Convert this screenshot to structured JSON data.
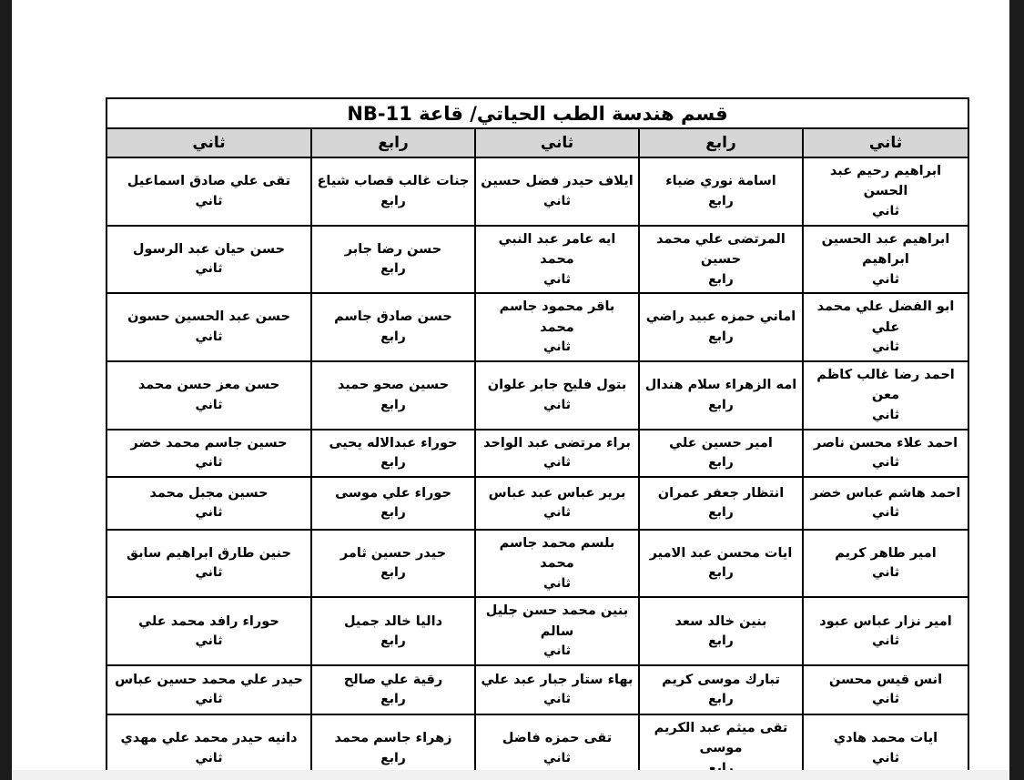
{
  "page": {
    "title": "قسم هندسة الطب الحياتي/ قاعة NB-11"
  },
  "table": {
    "columns": [
      {
        "header": "ثاني",
        "cells": [
          {
            "name": "ابراهيم رحيم عبد الحسن",
            "level": "ثاني"
          },
          {
            "name": "ابراهيم عبد الحسين ابراهيم",
            "level": "ثاني"
          },
          {
            "name": "ابو الفضل علي محمد علي",
            "level": "ثاني"
          },
          {
            "name": "احمد رضا غالب كاظم معن",
            "level": "ثاني"
          },
          {
            "name": "احمد علاء محسن ناصر",
            "level": "ثاني"
          },
          {
            "name": "احمد هاشم عباس خضر",
            "level": "ثاني"
          },
          {
            "name": "امير طاهر كريم",
            "level": "ثاني"
          },
          {
            "name": "امير نزار عباس عبود",
            "level": "ثاني"
          },
          {
            "name": "انس قيس محسن",
            "level": "ثاني"
          },
          {
            "name": "ايات محمد هادي",
            "level": "ثاني"
          }
        ]
      },
      {
        "header": "رابع",
        "cells": [
          {
            "name": "اسامة نوري ضياء",
            "level": "رابع"
          },
          {
            "name": "المرتضى علي محمد حسين",
            "level": "رابع"
          },
          {
            "name": "اماني حمزه عبيد راضي",
            "level": "رابع"
          },
          {
            "name": "امه الزهراء سلام هندال",
            "level": "رابع"
          },
          {
            "name": "امير حسين علي",
            "level": "رابع"
          },
          {
            "name": "انتظار جعفر عمران",
            "level": "رابع"
          },
          {
            "name": "ايات محسن عبد الامير",
            "level": "رابع"
          },
          {
            "name": "بنين خالد سعد",
            "level": "رابع"
          },
          {
            "name": "تبارك موسى كريم",
            "level": "رابع"
          },
          {
            "name": "تقى ميثم عبد الكريم موسى",
            "level": "رابع"
          }
        ]
      },
      {
        "header": "ثاني",
        "cells": [
          {
            "name": "ايلاف حيدر فضل حسين",
            "level": "ثاني"
          },
          {
            "name": "ايه عامر عبد النبي محمد",
            "level": "ثاني"
          },
          {
            "name": "باقر محمود جاسم محمد",
            "level": "ثاني"
          },
          {
            "name": "بتول فليح جابر علوان",
            "level": "ثاني"
          },
          {
            "name": "براء مرتضى عبد الواحد",
            "level": "ثاني"
          },
          {
            "name": "برير عباس عبد عباس",
            "level": "ثاني"
          },
          {
            "name": "بلسم محمد جاسم محمد",
            "level": "ثاني"
          },
          {
            "name": "بنين محمد حسن جليل سالم",
            "level": "ثاني"
          },
          {
            "name": "بهاء ستار جبار عبد علي",
            "level": "ثاني"
          },
          {
            "name": "تقى حمزه فاضل",
            "level": "ثاني"
          }
        ]
      },
      {
        "header": "رابع",
        "cells": [
          {
            "name": "جنات غالب قصاب شياع",
            "level": "رابع"
          },
          {
            "name": "حسن رضا جابر",
            "level": "رابع"
          },
          {
            "name": "حسن صادق جاسم",
            "level": "رابع"
          },
          {
            "name": "حسين صحو حميد",
            "level": "رابع"
          },
          {
            "name": "حوراء عبدالاله يحيى",
            "level": "رابع"
          },
          {
            "name": "حوراء علي موسى",
            "level": "رابع"
          },
          {
            "name": "حيدر حسين ثامر",
            "level": "رابع"
          },
          {
            "name": "داليا خالد جميل",
            "level": "رابع"
          },
          {
            "name": "رقية علي صالح",
            "level": "رابع"
          },
          {
            "name": "زهراء جاسم محمد",
            "level": "رابع"
          }
        ]
      },
      {
        "header": "ثاني",
        "cells": [
          {
            "name": "تقى علي صادق اسماعيل",
            "level": "ثاني"
          },
          {
            "name": "حسن حيان عبد الرسول",
            "level": "ثاني"
          },
          {
            "name": "حسن عبد الحسين حسون",
            "level": "ثاني"
          },
          {
            "name": "حسن معز حسن محمد",
            "level": "ثاني"
          },
          {
            "name": "حسين جاسم محمد خضر",
            "level": "ثاني"
          },
          {
            "name": "حسين مجبل محمد",
            "level": "ثاني"
          },
          {
            "name": "حنين طارق ابراهيم سابق",
            "level": "ثاني"
          },
          {
            "name": "حوراء رافد محمد علي",
            "level": "ثاني"
          },
          {
            "name": "حيدر علي محمد حسين عباس",
            "level": "ثاني"
          },
          {
            "name": "دانيه حيدر محمد علي مهدي",
            "level": "ثاني"
          }
        ]
      }
    ]
  },
  "colors": {
    "header_bg": "#d6d6d6",
    "border": "#000000",
    "edge_bar": "#1b1b1b"
  }
}
